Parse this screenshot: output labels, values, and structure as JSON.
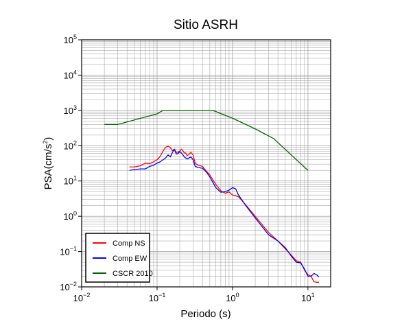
{
  "chart_data": {
    "type": "line",
    "title": "Sitio ASRH",
    "xlabel": "Periodo (s)",
    "ylabel_main": "PSA(cm/s",
    "ylabel_sup": "2",
    "ylabel_close": ")",
    "x_scale": "log",
    "y_scale": "log",
    "xlim": [
      0.01,
      20
    ],
    "ylim": [
      0.01,
      100000
    ],
    "grid": true,
    "legend_position": "bottom-left",
    "x_ticks": [
      {
        "value": 0.01,
        "base": "10",
        "exp": "−2"
      },
      {
        "value": 0.1,
        "base": "10",
        "exp": "−1"
      },
      {
        "value": 1,
        "base": "10",
        "exp": "0"
      },
      {
        "value": 10,
        "base": "10",
        "exp": "1"
      }
    ],
    "y_ticks": [
      {
        "value": 0.01,
        "base": "10",
        "exp": "−2"
      },
      {
        "value": 0.1,
        "base": "10",
        "exp": "−1"
      },
      {
        "value": 1,
        "base": "10",
        "exp": "0"
      },
      {
        "value": 10,
        "base": "10",
        "exp": "1"
      },
      {
        "value": 100,
        "base": "10",
        "exp": "2"
      },
      {
        "value": 1000,
        "base": "10",
        "exp": "3"
      },
      {
        "value": 10000,
        "base": "10",
        "exp": "4"
      },
      {
        "value": 100000,
        "base": "10",
        "exp": "5"
      }
    ],
    "series": [
      {
        "name": "Comp NS",
        "color": "#ff0000",
        "x": [
          0.043,
          0.05,
          0.06,
          0.07,
          0.08,
          0.09,
          0.1,
          0.11,
          0.12,
          0.13,
          0.14,
          0.15,
          0.16,
          0.17,
          0.18,
          0.19,
          0.2,
          0.21,
          0.22,
          0.23,
          0.24,
          0.25,
          0.26,
          0.28,
          0.3,
          0.32,
          0.35,
          0.4,
          0.45,
          0.5,
          0.6,
          0.7,
          0.8,
          0.9,
          1.0,
          1.1,
          1.2,
          1.5,
          2.0,
          3.0,
          4.0,
          5.0,
          6.0,
          7.0,
          8.0,
          9.0,
          10.0,
          11.0,
          12.0,
          13.0,
          14.0
        ],
        "y": [
          25,
          25,
          27,
          32,
          31,
          35,
          40,
          50,
          70,
          90,
          98,
          88,
          72,
          80,
          64,
          66,
          70,
          80,
          72,
          62,
          62,
          52,
          55,
          65,
          55,
          32,
          28,
          26,
          19,
          15,
          8,
          5.3,
          4.5,
          4.9,
          4.0,
          3.8,
          3.6,
          2.1,
          1.0,
          0.35,
          0.2,
          0.12,
          0.08,
          0.055,
          0.05,
          0.03,
          0.022,
          0.02,
          0.014,
          0.0135,
          0.0135
        ]
      },
      {
        "name": "Comp EW",
        "color": "#0000ff",
        "x": [
          0.043,
          0.05,
          0.06,
          0.07,
          0.08,
          0.09,
          0.1,
          0.11,
          0.12,
          0.13,
          0.14,
          0.15,
          0.16,
          0.17,
          0.18,
          0.19,
          0.2,
          0.21,
          0.22,
          0.23,
          0.24,
          0.25,
          0.26,
          0.28,
          0.3,
          0.32,
          0.35,
          0.4,
          0.45,
          0.5,
          0.6,
          0.7,
          0.8,
          0.9,
          1.0,
          1.1,
          1.2,
          1.5,
          2.0,
          3.0,
          4.0,
          5.0,
          6.0,
          7.0,
          8.0,
          9.0,
          10.0,
          11.0,
          12.0,
          13.0,
          14.0
        ],
        "y": [
          20,
          21,
          22,
          22,
          26,
          28,
          32,
          35,
          40,
          45,
          55,
          48,
          65,
          78,
          58,
          60,
          68,
          62,
          55,
          48,
          45,
          42,
          44,
          48,
          40,
          26,
          24,
          23,
          18,
          13,
          6.5,
          4.8,
          5.0,
          5.5,
          6.5,
          6.0,
          4.0,
          2.0,
          0.9,
          0.3,
          0.2,
          0.13,
          0.075,
          0.05,
          0.048,
          0.032,
          0.02,
          0.02,
          0.024,
          0.022,
          0.019
        ]
      },
      {
        "name": "CSCR 2010",
        "color": "#006400",
        "x": [
          0.02,
          0.03,
          0.1,
          0.12,
          0.2,
          0.3,
          0.5,
          0.55,
          1.0,
          2.0,
          3.5,
          10.0
        ],
        "y": [
          400,
          400,
          800,
          1000,
          1000,
          1000,
          1000,
          1000,
          600,
          300,
          160,
          20
        ]
      }
    ]
  }
}
